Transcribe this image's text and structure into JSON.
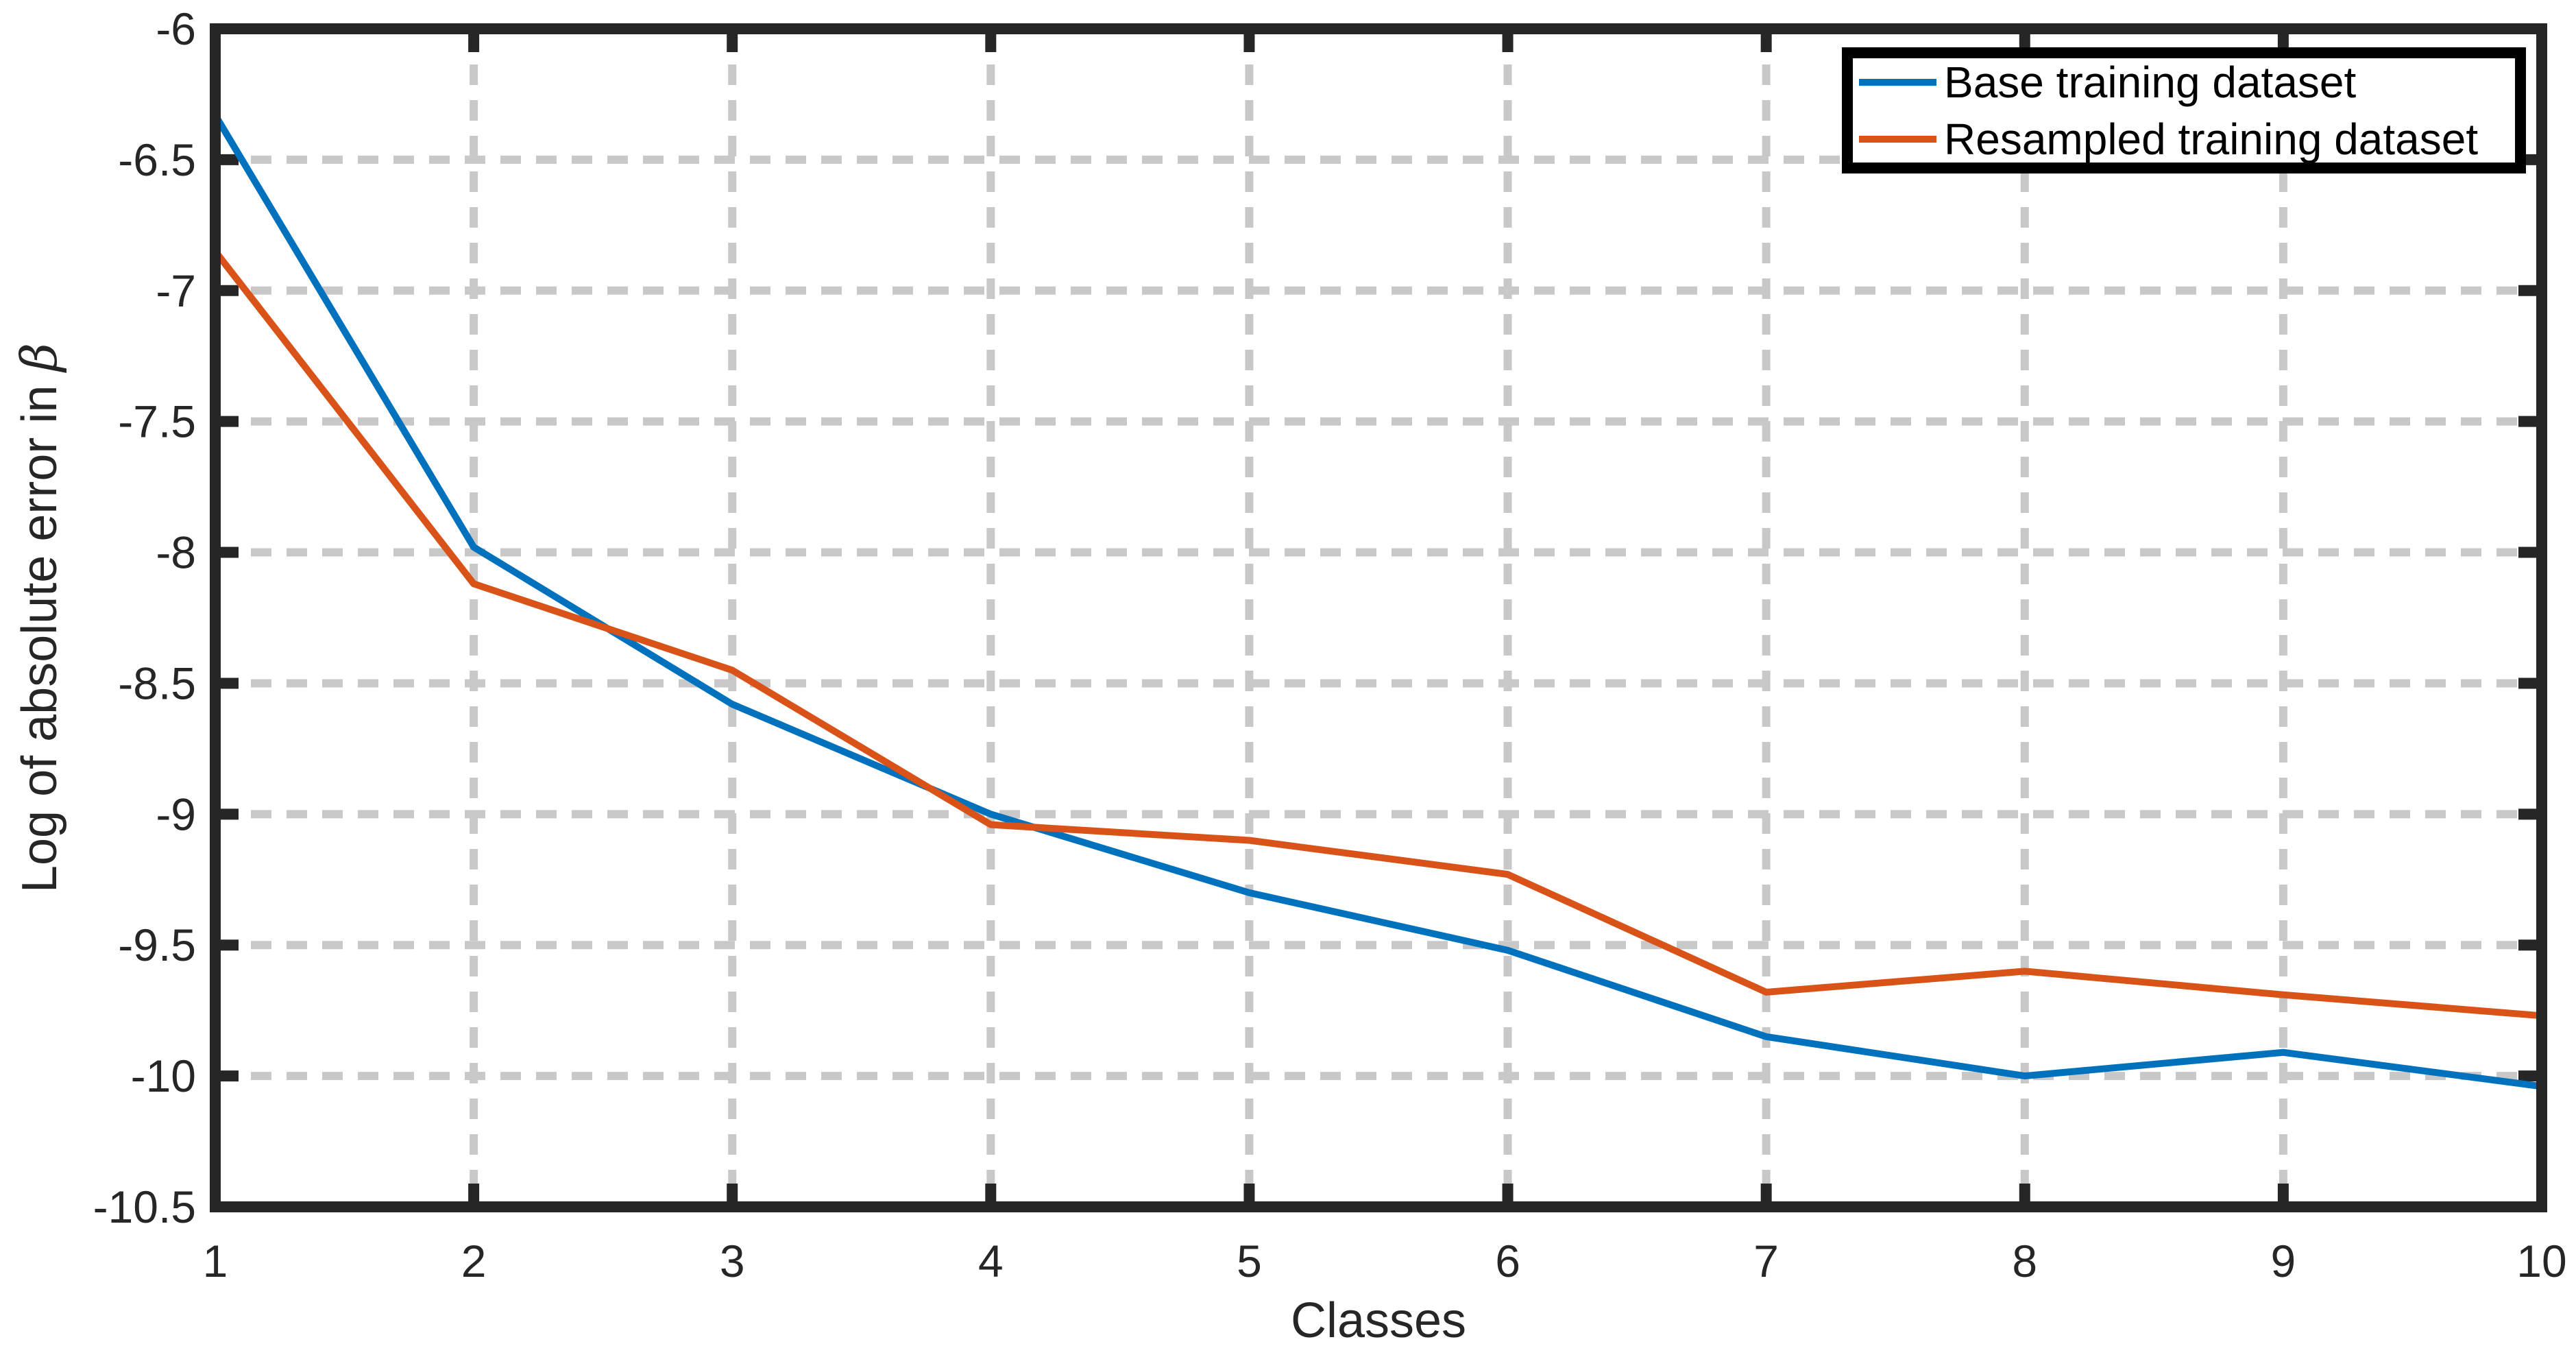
{
  "chart_data": {
    "type": "line",
    "xlabel": "Classes",
    "ylabel_text": "Log of absolute error in ",
    "ylabel_symbol": "β",
    "x": [
      1,
      2,
      3,
      4,
      5,
      6,
      7,
      8,
      9,
      10
    ],
    "xlim": [
      1,
      10
    ],
    "ylim": [
      -10.5,
      -6
    ],
    "xticks": [
      "1",
      "2",
      "3",
      "4",
      "5",
      "6",
      "7",
      "8",
      "9",
      "10"
    ],
    "yticks": [
      "-6",
      "-6.5",
      "-7",
      "-7.5",
      "-8",
      "-8.5",
      "-9",
      "-9.5",
      "-10",
      "-10.5"
    ],
    "grid": true,
    "legend_position": "top-right",
    "series": [
      {
        "name": "Base training dataset",
        "color": "#0072BD",
        "values": [
          -6.33,
          -7.98,
          -8.58,
          -9.0,
          -9.3,
          -9.52,
          -9.85,
          -10.0,
          -9.91,
          -10.04
        ]
      },
      {
        "name": "Resampled training dataset",
        "color": "#D95319",
        "values": [
          -6.85,
          -8.12,
          -8.45,
          -9.04,
          -9.1,
          -9.23,
          -9.68,
          -9.6,
          -9.69,
          -9.77
        ]
      }
    ]
  }
}
